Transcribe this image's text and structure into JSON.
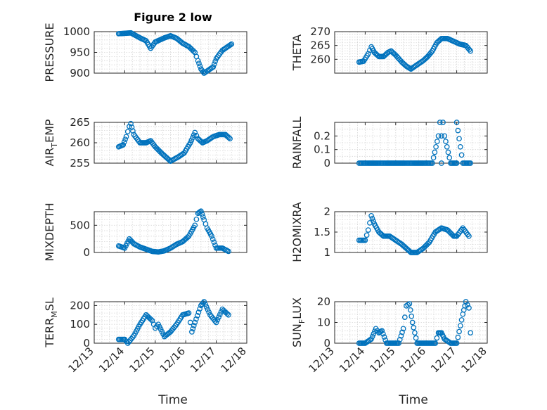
{
  "figure": {
    "title": "Figure 2 low",
    "xlabel": "Time",
    "xticks": [
      "12/13",
      "12/14",
      "12/15",
      "12/16",
      "12/17",
      "12/18"
    ],
    "marker_color": "#0072bd"
  },
  "chart_data": [
    {
      "type": "scatter",
      "col": 0,
      "row": 0,
      "ylabel": "PRESSURE",
      "ylim": [
        900,
        1000
      ],
      "yticks": [
        900,
        950,
        1000
      ],
      "minor": [
        910,
        920,
        930,
        940,
        960,
        970,
        980,
        990
      ],
      "grid": true,
      "title": "Figure 2 low",
      "x": [
        13.8,
        14.2,
        14.5,
        14.7,
        14.85,
        15.0,
        15.3,
        15.5,
        15.7,
        15.9,
        16.1,
        16.3,
        16.4,
        16.5,
        16.6,
        16.7,
        16.9,
        17.0,
        17.2,
        17.4,
        17.5
      ],
      "y": [
        995,
        997,
        985,
        978,
        960,
        975,
        985,
        990,
        984,
        972,
        964,
        950,
        930,
        910,
        900,
        905,
        915,
        935,
        955,
        965,
        970
      ]
    },
    {
      "type": "scatter",
      "col": 1,
      "row": 0,
      "ylabel": "THETA",
      "ylim": [
        255,
        270
      ],
      "yticks": [
        260,
        265,
        270
      ],
      "minor": [
        256,
        257,
        258,
        259,
        261,
        262,
        263,
        264,
        266,
        267,
        268,
        269
      ],
      "grid": true,
      "x": [
        13.8,
        13.95,
        14.1,
        14.2,
        14.3,
        14.45,
        14.6,
        14.75,
        14.85,
        15.0,
        15.2,
        15.35,
        15.5,
        15.7,
        15.9,
        16.05,
        16.2,
        16.35,
        16.5,
        16.7,
        16.9,
        17.1,
        17.3,
        17.45
      ],
      "y": [
        259,
        259.3,
        262,
        264.5,
        262.5,
        261,
        261,
        262.5,
        263,
        261.5,
        259,
        257.5,
        256.5,
        258,
        259.5,
        261,
        263,
        266,
        267.5,
        267.5,
        266.5,
        265.5,
        265,
        263
      ]
    },
    {
      "type": "scatter",
      "col": 0,
      "row": 1,
      "ylabel": "AIR_TEMP",
      "ylim": [
        255,
        265
      ],
      "yticks": [
        255,
        260,
        265
      ],
      "minor": [
        256,
        257,
        258,
        259,
        261,
        262,
        263,
        264
      ],
      "grid": true,
      "x": [
        13.8,
        13.95,
        14.05,
        14.15,
        14.2,
        14.3,
        14.5,
        14.7,
        14.85,
        15.0,
        15.2,
        15.35,
        15.5,
        15.75,
        15.95,
        16.15,
        16.3,
        16.4,
        16.55,
        16.7,
        16.9,
        17.1,
        17.3,
        17.45
      ],
      "y": [
        259,
        259.5,
        261.5,
        264,
        264.7,
        262,
        260,
        260,
        260.5,
        259,
        257.5,
        256.5,
        255.5,
        256.5,
        257.5,
        260,
        262.5,
        261,
        260,
        260.5,
        261.5,
        262,
        262,
        261
      ]
    },
    {
      "type": "scatter",
      "col": 1,
      "row": 1,
      "ylabel": "RAINFALL",
      "ylim": [
        0,
        0.3
      ],
      "yticks": [
        0,
        0.1,
        0.2
      ],
      "ytickLabels": [
        "0",
        "0.1",
        "0.2"
      ],
      "minor": [
        0.05,
        0.15,
        0.25
      ],
      "grid": true,
      "x": [
        13.8,
        14.1,
        14.4,
        14.7,
        15.0,
        15.3,
        15.6,
        15.9,
        16.2,
        16.4,
        16.45,
        16.5,
        16.55,
        16.6,
        16.8,
        17.0,
        17.2,
        17.45,
        16.5,
        17.0
      ],
      "y": [
        0,
        0,
        0,
        0,
        0,
        0,
        0,
        0,
        0,
        0.2,
        0.3,
        0.2,
        0.3,
        0.2,
        0,
        0,
        0,
        0,
        0,
        0.3
      ]
    },
    {
      "type": "scatter",
      "col": 0,
      "row": 2,
      "ylabel": "MIXDEPTH",
      "ylim": [
        0,
        750
      ],
      "yticks": [
        0,
        500
      ],
      "minor": [
        100,
        200,
        300,
        400,
        600,
        700
      ],
      "grid": true,
      "x": [
        13.8,
        14.0,
        14.15,
        14.3,
        14.5,
        14.7,
        14.9,
        15.1,
        15.3,
        15.5,
        15.7,
        15.9,
        16.1,
        16.3,
        16.4,
        16.5,
        16.6,
        16.7,
        16.85,
        17.0,
        17.2,
        17.4
      ],
      "y": [
        120,
        80,
        250,
        160,
        100,
        60,
        20,
        10,
        30,
        80,
        150,
        200,
        300,
        500,
        720,
        760,
        600,
        450,
        300,
        80,
        80,
        20
      ]
    },
    {
      "type": "scatter",
      "col": 1,
      "row": 2,
      "ylabel": "H2OMIXRA",
      "ylim": [
        1,
        2
      ],
      "yticks": [
        1,
        1.5,
        2
      ],
      "ytickLabels": [
        "1",
        "1.5",
        "2"
      ],
      "minor": [
        1.1,
        1.2,
        1.3,
        1.4,
        1.6,
        1.7,
        1.8,
        1.9
      ],
      "grid": true,
      "x": [
        13.8,
        14.0,
        14.1,
        14.2,
        14.3,
        14.45,
        14.6,
        14.8,
        15.0,
        15.2,
        15.35,
        15.5,
        15.7,
        15.9,
        16.1,
        16.3,
        16.5,
        16.7,
        16.9,
        17.0,
        17.2,
        17.4
      ],
      "y": [
        1.3,
        1.3,
        1.55,
        1.9,
        1.7,
        1.5,
        1.4,
        1.4,
        1.3,
        1.2,
        1.1,
        1.0,
        1.0,
        1.1,
        1.25,
        1.5,
        1.6,
        1.55,
        1.4,
        1.4,
        1.6,
        1.4
      ]
    },
    {
      "type": "scatter",
      "col": 0,
      "row": 3,
      "ylabel": "TERR_MSL",
      "ylim": [
        0,
        220
      ],
      "yticks": [
        0,
        100,
        200
      ],
      "minor": [
        20,
        40,
        60,
        80,
        120,
        140,
        160,
        180
      ],
      "grid": true,
      "x": [
        13.8,
        14.0,
        14.1,
        14.3,
        14.5,
        14.7,
        14.9,
        15.0,
        15.1,
        15.3,
        15.5,
        15.7,
        15.9,
        16.1,
        16.2,
        16.3,
        16.5,
        16.6,
        16.8,
        17.0,
        17.2,
        17.4
      ],
      "y": [
        20,
        20,
        0,
        40,
        100,
        150,
        120,
        80,
        100,
        35,
        60,
        100,
        150,
        160,
        60,
        110,
        200,
        220,
        150,
        110,
        180,
        150
      ]
    },
    {
      "type": "scatter",
      "col": 1,
      "row": 3,
      "ylabel": "SUN_FLUX",
      "ylim": [
        0,
        20
      ],
      "yticks": [
        0,
        10,
        20
      ],
      "minor": [
        2,
        4,
        6,
        8,
        12,
        14,
        16,
        18
      ],
      "grid": true,
      "x": [
        13.8,
        14.0,
        14.2,
        14.35,
        14.45,
        14.55,
        14.7,
        14.9,
        15.1,
        15.25,
        15.35,
        15.45,
        15.55,
        15.7,
        15.9,
        16.1,
        16.3,
        16.4,
        16.5,
        16.6,
        16.8,
        17.0,
        17.2,
        17.3,
        17.4,
        17.45
      ],
      "y": [
        0,
        0,
        2,
        7,
        5,
        6,
        0,
        0,
        0,
        7,
        18,
        19,
        10,
        0,
        0,
        0,
        0,
        5,
        5,
        2,
        0,
        0,
        14,
        20,
        17,
        5
      ]
    }
  ]
}
